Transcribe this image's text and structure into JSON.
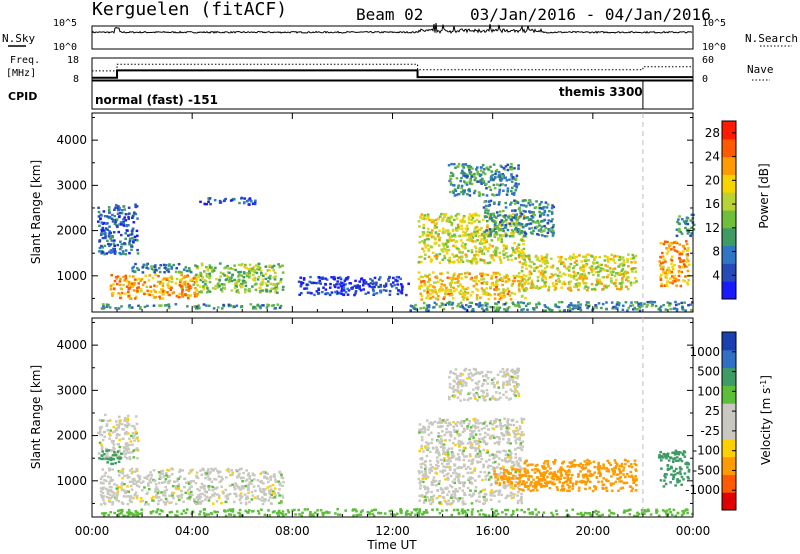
{
  "header": {
    "station": "Kerguelen (fitACF)",
    "beam": "Beam 02",
    "date_range": "03/Jan/2016 - 04/Jan/2016"
  },
  "sky_panel": {
    "left_label": "N.Sky",
    "right_label": "N.Search",
    "left_ticks": [
      "10^5",
      "10^0"
    ],
    "right_ticks": [
      "10^5",
      "10^0"
    ]
  },
  "freq_panel": {
    "left_label_1": "Freq.",
    "left_label_2": "[MHz]",
    "right_label": "Nave",
    "left_ticks": [
      "18",
      "8"
    ],
    "right_ticks": [
      "60",
      "0"
    ],
    "freq_steps": [
      {
        "t0": 0,
        "t1": 1,
        "mhz": 9.0
      },
      {
        "t0": 1,
        "t1": 13,
        "mhz": 12.4
      },
      {
        "t0": 13,
        "t1": 24,
        "mhz": 9.3
      }
    ],
    "nave_steps": [
      {
        "t0": 0,
        "t1": 1,
        "nave": 25
      },
      {
        "t0": 1,
        "t1": 13,
        "nave": 43
      },
      {
        "t0": 13,
        "t1": 22,
        "nave": 28
      },
      {
        "t0": 22,
        "t1": 24,
        "nave": 36
      }
    ]
  },
  "cpid_panel": {
    "label": "CPID",
    "mode_1": "normal (fast) -151",
    "mode_2": "themis 3300",
    "mode_2_start_hour": 22
  },
  "colors": {
    "power_scale": [
      "#1a1aff",
      "#264bb8",
      "#2f76c4",
      "#3e9b64",
      "#6fbf3a",
      "#b9d432",
      "#f7d300",
      "#ff9a00",
      "#ff5a00",
      "#ff1a00"
    ],
    "velocity_scale": [
      "#e00000",
      "#ff5a00",
      "#ff9a00",
      "#ffd000",
      "#c8c8c0",
      "#c8c8c0",
      "#5cbf3a",
      "#3e9b64",
      "#2f6fc4",
      "#1a3fb0"
    ]
  },
  "chart_data": [
    {
      "type": "heatmap",
      "name": "power",
      "ylabel": "Slant Range [km]",
      "xlabel": "Time UT",
      "xlim": [
        0,
        24
      ],
      "ylim": [
        200,
        4600
      ],
      "y_ticks": [
        "1000",
        "2000",
        "3000",
        "4000"
      ],
      "x_ticks": [
        "00:00",
        "04:00",
        "08:00",
        "12:00",
        "16:00",
        "20:00",
        "00:00"
      ],
      "colorbar": {
        "label": "Power [dB]",
        "ticks": [
          "4",
          "8",
          "12",
          "16",
          "20",
          "24",
          "28"
        ],
        "range": [
          0,
          30
        ]
      },
      "regions": [
        {
          "t0": 0.3,
          "t1": 7.6,
          "r0": 300,
          "r1": 400,
          "level": 10,
          "note": "near-range"
        },
        {
          "t0": 0.7,
          "t1": 4.2,
          "r0": 520,
          "r1": 1050,
          "level": 22
        },
        {
          "t0": 4.0,
          "t1": 7.6,
          "r0": 650,
          "r1": 1300,
          "level": 14
        },
        {
          "t0": 0.2,
          "t1": 1.8,
          "r0": 1500,
          "r1": 2600,
          "level": 6
        },
        {
          "t0": 1.5,
          "t1": 4.0,
          "r0": 1100,
          "r1": 1300,
          "level": 8
        },
        {
          "t0": 4.2,
          "t1": 6.5,
          "r0": 2600,
          "r1": 2750,
          "level": 5
        },
        {
          "t0": 8.2,
          "t1": 12.6,
          "r0": 600,
          "r1": 1000,
          "level": 3
        },
        {
          "t0": 13.0,
          "t1": 17.2,
          "r0": 1300,
          "r1": 2400,
          "level": 17
        },
        {
          "t0": 13.0,
          "t1": 17.4,
          "r0": 500,
          "r1": 1100,
          "level": 20
        },
        {
          "t0": 14.2,
          "t1": 17.0,
          "r0": 2800,
          "r1": 3500,
          "level": 10
        },
        {
          "t0": 15.6,
          "t1": 18.4,
          "r0": 1900,
          "r1": 2700,
          "level": 9
        },
        {
          "t0": 17.0,
          "t1": 21.7,
          "r0": 700,
          "r1": 1500,
          "level": 18
        },
        {
          "t0": 22.6,
          "t1": 23.8,
          "r0": 800,
          "r1": 1800,
          "level": 22
        },
        {
          "t0": 23.3,
          "t1": 24.0,
          "r0": 1900,
          "r1": 2400,
          "level": 9
        },
        {
          "t0": 12.6,
          "t1": 24.0,
          "r0": 250,
          "r1": 450,
          "level": 9,
          "note": "near-range"
        }
      ]
    },
    {
      "type": "heatmap",
      "name": "velocity",
      "ylabel": "Slant Range [km]",
      "xlabel": "Time UT",
      "xlim": [
        0,
        24
      ],
      "ylim": [
        200,
        4600
      ],
      "y_ticks": [
        "1000",
        "2000",
        "3000",
        "4000"
      ],
      "x_ticks": [
        "00:00",
        "04:00",
        "08:00",
        "12:00",
        "16:00",
        "20:00",
        "00:00"
      ],
      "colorbar": {
        "label_main": "Velocity",
        "label_unit": "[m s",
        "label_sup": "-1",
        "label_close": "]",
        "ticks": [
          "1000",
          "500",
          "100",
          "25",
          "-25",
          "-100",
          "-500",
          "-1000"
        ]
      },
      "regions": [
        {
          "t0": 0.3,
          "t1": 7.6,
          "r0": 500,
          "r1": 1300,
          "vel": 0
        },
        {
          "t0": 0.2,
          "t1": 1.8,
          "r0": 1500,
          "r1": 2500,
          "vel": 0
        },
        {
          "t0": 0.2,
          "t1": 1.2,
          "r0": 1400,
          "r1": 1700,
          "vel": 150
        },
        {
          "t0": 13.0,
          "t1": 17.2,
          "r0": 500,
          "r1": 2400,
          "vel": 0
        },
        {
          "t0": 14.2,
          "t1": 17.0,
          "r0": 2800,
          "r1": 3500,
          "vel": 0
        },
        {
          "t0": 17.0,
          "t1": 21.7,
          "r0": 800,
          "r1": 1500,
          "vel": -300
        },
        {
          "t0": 16.0,
          "t1": 19.0,
          "r0": 900,
          "r1": 1300,
          "vel": -150
        },
        {
          "t0": 22.6,
          "t1": 23.8,
          "r0": 900,
          "r1": 1700,
          "vel": 300
        },
        {
          "t0": 0.3,
          "t1": 24.0,
          "r0": 250,
          "r1": 400,
          "vel": 60
        }
      ]
    }
  ]
}
